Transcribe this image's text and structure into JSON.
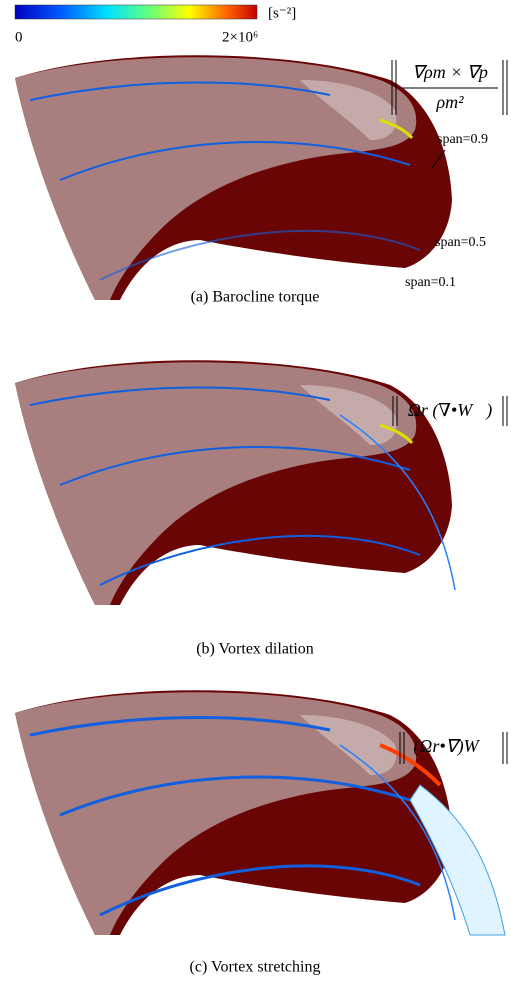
{
  "colorbar": {
    "min_label": "0",
    "max_label": "2×10⁶",
    "unit": "[s⁻²]"
  },
  "panels": [
    {
      "caption": "(a) Barocline torque",
      "formula_numerator": "∇ρm × ∇p",
      "formula_denominator": "ρm²",
      "span_labels": [
        "span=0.9",
        "span=0.5",
        "span=0.1"
      ]
    },
    {
      "caption": "(b) Vortex dilation",
      "formula": "Ωr (∇•W⃗)"
    },
    {
      "caption": "(c) Vortex stretching",
      "formula": "(Ωr•∇)W⃗"
    }
  ]
}
